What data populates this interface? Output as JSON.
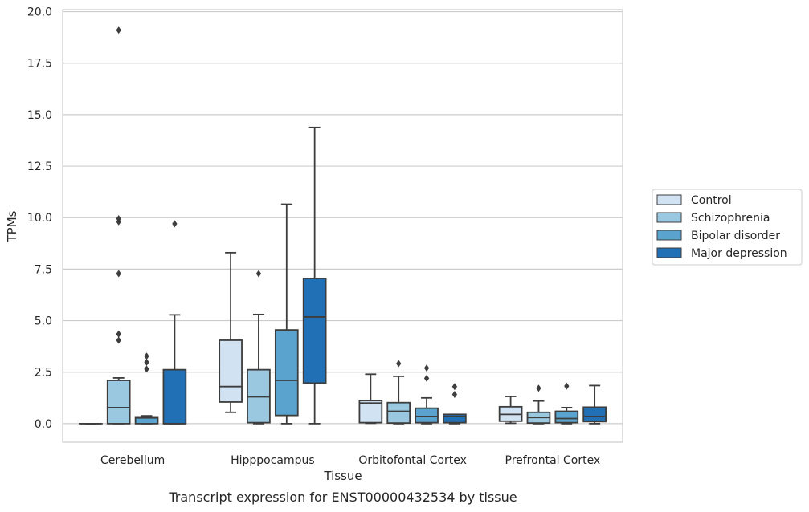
{
  "chart_data": {
    "type": "boxplot",
    "title": "",
    "caption": "Transcript expression for ENST00000432534 by tissue",
    "xlabel": "Tissue",
    "ylabel": "TPMs",
    "ylim": [
      -0.9,
      20.1
    ],
    "y_ticks": [
      "0.0",
      "2.5",
      "5.0",
      "7.5",
      "10.0",
      "12.5",
      "15.0",
      "17.5",
      "20.0"
    ],
    "grid": "horizontal",
    "legend_position": "right",
    "categories": [
      "Cerebellum",
      "Hipppocampus",
      "Orbitofontal Cortex",
      "Prefrontal Cortex"
    ],
    "series": [
      {
        "name": "Control",
        "color": "#d1e2f2",
        "boxes": [
          {
            "whislo": 0,
            "q1": 0,
            "med": 0,
            "q3": 0,
            "whishi": 0,
            "fliers": []
          },
          {
            "whislo": 0.55,
            "q1": 1.05,
            "med": 1.8,
            "q3": 4.05,
            "whishi": 8.3,
            "fliers": []
          },
          {
            "whislo": 0.02,
            "q1": 0.05,
            "med": 1.0,
            "q3": 1.12,
            "whishi": 2.4,
            "fliers": []
          },
          {
            "whislo": 0.02,
            "q1": 0.12,
            "med": 0.45,
            "q3": 0.82,
            "whishi": 1.32,
            "fliers": []
          }
        ]
      },
      {
        "name": "Schizophrenia",
        "color": "#9ac8e0",
        "boxes": [
          {
            "whislo": 0,
            "q1": 0,
            "med": 0.78,
            "q3": 2.1,
            "whishi": 2.22,
            "fliers": [
              4.05,
              4.35,
              7.28,
              9.8,
              9.95,
              19.1
            ]
          },
          {
            "whislo": 0,
            "q1": 0.05,
            "med": 1.3,
            "q3": 2.62,
            "whishi": 5.3,
            "fliers": [
              7.28
            ]
          },
          {
            "whislo": 0,
            "q1": 0.03,
            "med": 0.6,
            "q3": 1.02,
            "whishi": 2.3,
            "fliers": [
              2.92
            ]
          },
          {
            "whislo": 0,
            "q1": 0.03,
            "med": 0.3,
            "q3": 0.55,
            "whishi": 1.1,
            "fliers": [
              1.72
            ]
          }
        ]
      },
      {
        "name": "Bipolar disorder",
        "color": "#5ba3cf",
        "boxes": [
          {
            "whislo": 0,
            "q1": 0,
            "med": 0.28,
            "q3": 0.33,
            "whishi": 0.38,
            "fliers": [
              2.65,
              2.98,
              3.28
            ]
          },
          {
            "whislo": 0,
            "q1": 0.4,
            "med": 2.1,
            "q3": 4.55,
            "whishi": 10.65,
            "fliers": []
          },
          {
            "whislo": 0,
            "q1": 0.05,
            "med": 0.35,
            "q3": 0.75,
            "whishi": 1.25,
            "fliers": [
              2.2,
              2.7
            ]
          },
          {
            "whislo": 0,
            "q1": 0.05,
            "med": 0.25,
            "q3": 0.6,
            "whishi": 0.78,
            "fliers": [
              1.82
            ]
          }
        ]
      },
      {
        "name": "Major depression",
        "color": "#2170b5",
        "boxes": [
          {
            "whislo": 0,
            "q1": 0,
            "med": 0,
            "q3": 2.62,
            "whishi": 5.28,
            "fliers": [
              9.7
            ]
          },
          {
            "whislo": 0,
            "q1": 1.97,
            "med": 5.18,
            "q3": 7.05,
            "whishi": 14.38,
            "fliers": []
          },
          {
            "whislo": 0,
            "q1": 0.05,
            "med": 0.35,
            "q3": 0.45,
            "whishi": 0.45,
            "fliers": [
              1.42,
              1.8
            ]
          },
          {
            "whislo": 0,
            "q1": 0.1,
            "med": 0.35,
            "q3": 0.8,
            "whishi": 1.85,
            "fliers": []
          }
        ]
      }
    ]
  }
}
